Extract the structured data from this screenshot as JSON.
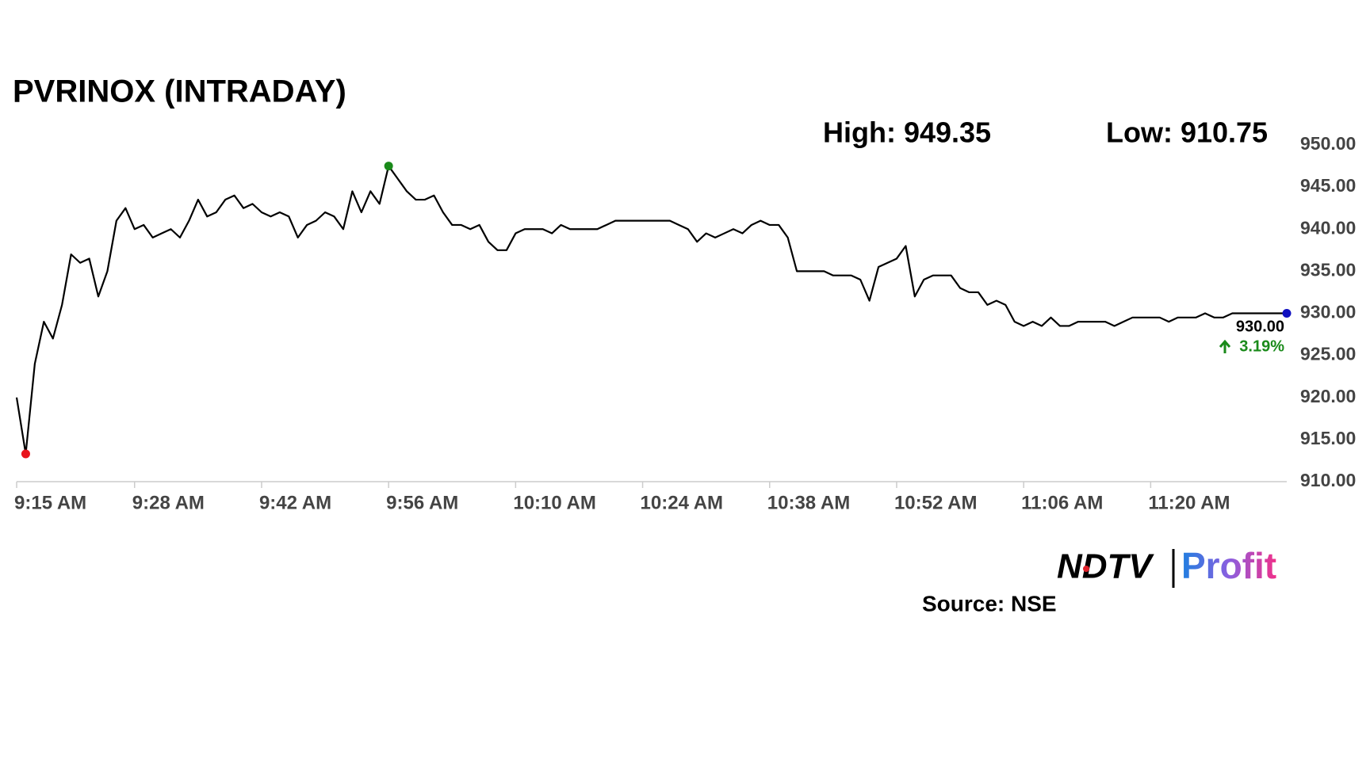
{
  "chart_data": {
    "type": "line",
    "title": "PVRINOX (INTRADAY)",
    "high_label": "High: 949.35",
    "low_label": "Low: 910.75",
    "last_value_label": "930.00",
    "change_label": "3.19%",
    "logo_left": "NDTV",
    "logo_right": "Profit",
    "source": "Source: NSE",
    "color": "#000000",
    "high_color": "#1a8a1a",
    "low_color": "#e8141c",
    "last_color": "#1010c0",
    "high_index": 41,
    "low_index": 1,
    "x": [
      "9:15 AM",
      "9:16 AM",
      "9:17 AM",
      "9:18 AM",
      "9:19 AM",
      "9:20 AM",
      "9:21 AM",
      "9:22 AM",
      "9:23 AM",
      "9:24 AM",
      "9:25 AM",
      "9:26 AM",
      "9:27 AM",
      "9:28 AM",
      "9:29 AM",
      "9:30 AM",
      "9:31 AM",
      "9:32 AM",
      "9:33 AM",
      "9:34 AM",
      "9:35 AM",
      "9:36 AM",
      "9:37 AM",
      "9:38 AM",
      "9:39 AM",
      "9:40 AM",
      "9:41 AM",
      "9:42 AM",
      "9:43 AM",
      "9:44 AM",
      "9:45 AM",
      "9:46 AM",
      "9:47 AM",
      "9:48 AM",
      "9:49 AM",
      "9:50 AM",
      "9:51 AM",
      "9:52 AM",
      "9:53 AM",
      "9:54 AM",
      "9:55 AM",
      "9:56 AM",
      "9:57 AM",
      "9:58 AM",
      "9:59 AM",
      "10:00 AM",
      "10:01 AM",
      "10:02 AM",
      "10:03 AM",
      "10:04 AM",
      "10:05 AM",
      "10:06 AM",
      "10:07 AM",
      "10:08 AM",
      "10:09 AM",
      "10:10 AM",
      "10:11 AM",
      "10:12 AM",
      "10:13 AM",
      "10:14 AM",
      "10:15 AM",
      "10:16 AM",
      "10:17 AM",
      "10:18 AM",
      "10:19 AM",
      "10:20 AM",
      "10:21 AM",
      "10:22 AM",
      "10:23 AM",
      "10:24 AM",
      "10:25 AM",
      "10:26 AM",
      "10:27 AM",
      "10:28 AM",
      "10:29 AM",
      "10:30 AM",
      "10:31 AM",
      "10:32 AM",
      "10:33 AM",
      "10:34 AM",
      "10:35 AM",
      "10:36 AM",
      "10:37 AM",
      "10:38 AM",
      "10:39 AM",
      "10:40 AM",
      "10:41 AM",
      "10:42 AM",
      "10:43 AM",
      "10:44 AM",
      "10:45 AM",
      "10:46 AM",
      "10:47 AM",
      "10:48 AM",
      "10:49 AM",
      "10:50 AM",
      "10:51 AM",
      "10:52 AM",
      "10:53 AM",
      "10:54 AM",
      "10:55 AM",
      "10:56 AM",
      "10:57 AM",
      "10:58 AM",
      "10:59 AM",
      "11:00 AM",
      "11:01 AM",
      "11:02 AM",
      "11:03 AM",
      "11:04 AM",
      "11:05 AM",
      "11:06 AM",
      "11:07 AM",
      "11:08 AM",
      "11:09 AM",
      "11:10 AM",
      "11:11 AM",
      "11:12 AM",
      "11:13 AM",
      "11:14 AM",
      "11:15 AM",
      "11:16 AM",
      "11:17 AM",
      "11:18 AM",
      "11:19 AM",
      "11:20 AM",
      "11:21 AM",
      "11:22 AM",
      "11:23 AM",
      "11:24 AM",
      "11:25 AM",
      "11:26 AM",
      "11:27 AM",
      "11:28 AM",
      "11:29 AM",
      "11:30 AM",
      "11:31 AM",
      "11:32 AM",
      "11:33 AM",
      "11:34 AM",
      "11:35 AM"
    ],
    "values": [
      920,
      913.3,
      924,
      929,
      927,
      931,
      937,
      936,
      936.5,
      932,
      935,
      941,
      942.5,
      940,
      940.5,
      939,
      939.5,
      940,
      939,
      941,
      943.5,
      941.5,
      942,
      943.5,
      944,
      942.5,
      943,
      942,
      941.5,
      942,
      941.5,
      939,
      940.5,
      941,
      942,
      941.5,
      940,
      944.5,
      942,
      944.5,
      943,
      947.5,
      946,
      944.5,
      943.5,
      943.5,
      944,
      942,
      940.5,
      940.5,
      940,
      940.5,
      938.5,
      937.5,
      937.5,
      939.5,
      940,
      940,
      940,
      939.5,
      940.5,
      940,
      940,
      940,
      940,
      940.5,
      941,
      941,
      941,
      941,
      941,
      941,
      941,
      940.5,
      940,
      938.5,
      939.5,
      939,
      939.5,
      940,
      939.5,
      940.5,
      941,
      940.5,
      940.5,
      939,
      935,
      935,
      935,
      935,
      934.5,
      934.5,
      934.5,
      934,
      931.5,
      935.5,
      936,
      936.5,
      938,
      932,
      934,
      934.5,
      934.5,
      934.5,
      933,
      932.5,
      932.5,
      931,
      931.5,
      931,
      929,
      928.5,
      929,
      928.5,
      929.5,
      928.5,
      928.5,
      929,
      929,
      929,
      929,
      928.5,
      929,
      929.5,
      929.5,
      929.5,
      929.5,
      929,
      929.5,
      929.5,
      929.5,
      930,
      929.5,
      929.5,
      930,
      930,
      930,
      930,
      930,
      930,
      930
    ],
    "xlim": [
      "9:15 AM",
      "11:35 AM"
    ],
    "xticks": [
      "9:15 AM",
      "9:28 AM",
      "9:42 AM",
      "9:56 AM",
      "10:10 AM",
      "10:24 AM",
      "10:38 AM",
      "10:52 AM",
      "11:06 AM",
      "11:20 AM"
    ],
    "ylim": [
      910,
      950
    ],
    "yticks": [
      {
        "value": 910,
        "label": "910.00"
      },
      {
        "value": 915,
        "label": "915.00"
      },
      {
        "value": 920,
        "label": "920.00"
      },
      {
        "value": 925,
        "label": "925.00"
      },
      {
        "value": 930,
        "label": "930.00"
      },
      {
        "value": 935,
        "label": "935.00"
      },
      {
        "value": 940,
        "label": "940.00"
      },
      {
        "value": 945,
        "label": "945.00"
      },
      {
        "value": 950,
        "label": "950.00"
      }
    ]
  }
}
